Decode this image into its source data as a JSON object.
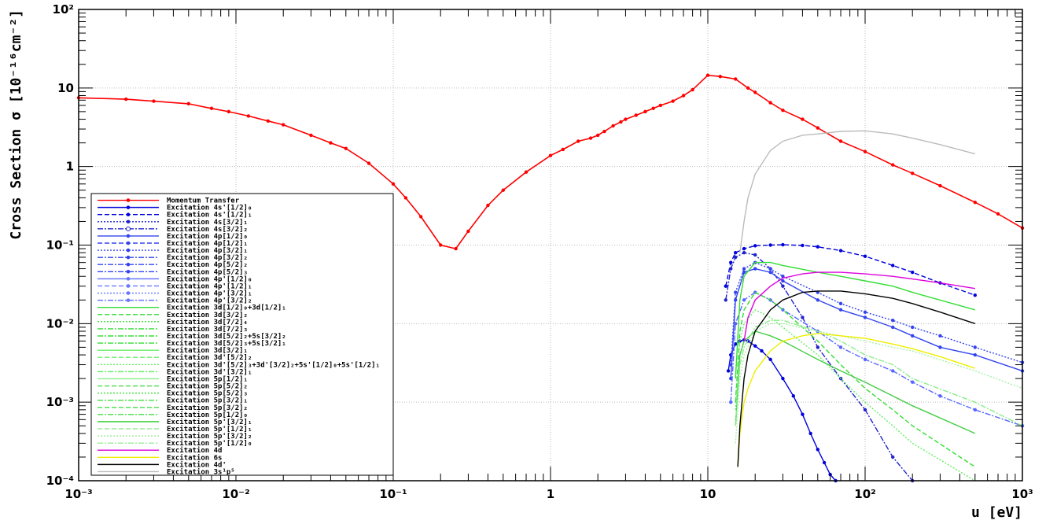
{
  "chart_data": {
    "type": "line",
    "xlabel": "u [eV]",
    "ylabel": "Cross Section σ [10⁻¹⁶cm⁻²]",
    "xscale": "log",
    "yscale": "log",
    "xlim": [
      0.001,
      1000
    ],
    "ylim": [
      0.0001,
      100
    ],
    "grid": true,
    "legend_position": "bottom-left",
    "x_tick_labels": [
      "10⁻³",
      "10⁻²",
      "10⁻¹",
      "1",
      "10",
      "10²",
      "10³"
    ],
    "y_tick_labels": [
      "10⁻⁴",
      "10⁻³",
      "10⁻²",
      "10⁻¹",
      "1",
      "10",
      "10²"
    ],
    "series": [
      {
        "name": "Momentum Transfer",
        "color": "#ff0000",
        "style": "solid",
        "marker": true,
        "x": [
          0.001,
          0.002,
          0.003,
          0.005,
          0.007,
          0.009,
          0.012,
          0.016,
          0.02,
          0.03,
          0.04,
          0.05,
          0.07,
          0.1,
          0.12,
          0.15,
          0.2,
          0.25,
          0.3,
          0.4,
          0.5,
          0.7,
          1,
          1.2,
          1.5,
          1.8,
          2,
          2.2,
          2.5,
          2.8,
          3,
          3.5,
          4,
          4.5,
          5,
          6,
          7,
          8,
          10,
          12,
          15,
          18,
          20,
          25,
          30,
          40,
          50,
          70,
          100,
          150,
          200,
          300,
          500,
          700,
          1000
        ],
        "y": [
          7.5,
          7.2,
          6.8,
          6.3,
          5.5,
          5.0,
          4.4,
          3.8,
          3.4,
          2.5,
          2.0,
          1.7,
          1.1,
          0.6,
          0.4,
          0.23,
          0.1,
          0.09,
          0.15,
          0.32,
          0.5,
          0.85,
          1.38,
          1.65,
          2.1,
          2.3,
          2.5,
          2.8,
          3.3,
          3.7,
          4.0,
          4.5,
          5.0,
          5.5,
          6.0,
          6.8,
          8.0,
          9.5,
          14.5,
          14.0,
          13.0,
          10.0,
          8.8,
          6.5,
          5.2,
          4.0,
          3.1,
          2.1,
          1.55,
          1.05,
          0.82,
          0.57,
          0.35,
          0.25,
          0.165
        ]
      },
      {
        "name": "Excitation 4s'[1/2]₀",
        "color": "#0000dd",
        "style": "solid",
        "marker": true,
        "x": [
          13.5,
          14,
          15,
          16,
          17,
          18,
          20,
          22,
          25,
          30,
          35,
          40,
          45,
          50,
          55,
          60,
          65
        ],
        "y": [
          0.0025,
          0.004,
          0.0055,
          0.006,
          0.0062,
          0.006,
          0.0052,
          0.0045,
          0.0035,
          0.002,
          0.0012,
          0.0007,
          0.0004,
          0.00025,
          0.00017,
          0.00012,
          0.0001
        ]
      },
      {
        "name": "Excitation 4s'[1/2]₁",
        "color": "#0000dd",
        "style": "dashed",
        "marker": true,
        "x": [
          13,
          14,
          15,
          17,
          20,
          25,
          30,
          40,
          50,
          70,
          100,
          150,
          200,
          300,
          500
        ],
        "y": [
          0.03,
          0.06,
          0.08,
          0.09,
          0.098,
          0.1,
          0.101,
          0.099,
          0.095,
          0.085,
          0.072,
          0.055,
          0.045,
          0.033,
          0.023
        ]
      },
      {
        "name": "Excitation 4s[3/2]₁",
        "color": "#2222cc",
        "style": "dashdot",
        "marker": true,
        "x": [
          13,
          14,
          15,
          17,
          20,
          25,
          30,
          40,
          50,
          70,
          100,
          150,
          200
        ],
        "y": [
          0.02,
          0.05,
          0.07,
          0.08,
          0.075,
          0.05,
          0.03,
          0.012,
          0.005,
          0.002,
          0.0008,
          0.0002,
          0.0001
        ]
      },
      {
        "name": "Excitation 4p[1/2]₁",
        "color": "#3344ee",
        "style": "solid",
        "marker": true,
        "x": [
          14,
          15,
          17,
          20,
          25,
          30,
          50,
          70,
          100,
          150,
          200,
          300,
          500,
          1000
        ],
        "y": [
          0.002,
          0.02,
          0.045,
          0.05,
          0.045,
          0.035,
          0.02,
          0.015,
          0.012,
          0.009,
          0.007,
          0.005,
          0.004,
          0.0025
        ]
      },
      {
        "name": "Excitation 4p[3/2]₁",
        "color": "#3344ee",
        "style": "dotted",
        "marker": true,
        "x": [
          14,
          15,
          17,
          20,
          25,
          30,
          50,
          70,
          100,
          150,
          200,
          300,
          500,
          1000
        ],
        "y": [
          0.003,
          0.025,
          0.05,
          0.06,
          0.05,
          0.04,
          0.025,
          0.018,
          0.014,
          0.011,
          0.009,
          0.007,
          0.005,
          0.0032
        ]
      },
      {
        "name": "Excitation 4p[5/2]₂",
        "color": "#5566ff",
        "style": "dashdot",
        "marker": true,
        "x": [
          14,
          15,
          17,
          20,
          25,
          30,
          50,
          70,
          100,
          150,
          200,
          300,
          500,
          1000
        ],
        "y": [
          0.001,
          0.01,
          0.02,
          0.025,
          0.02,
          0.015,
          0.008,
          0.005,
          0.0035,
          0.0025,
          0.0018,
          0.0012,
          0.0008,
          0.0005
        ]
      },
      {
        "name": "Excitation 3d[1/2]₁+3d[1/2]₁",
        "color": "#33dd33",
        "style": "solid",
        "marker": false,
        "x": [
          15,
          16,
          17,
          20,
          25,
          30,
          50,
          70,
          100,
          150,
          200,
          500
        ],
        "y": [
          0.002,
          0.02,
          0.04,
          0.06,
          0.06,
          0.055,
          0.045,
          0.04,
          0.035,
          0.03,
          0.025,
          0.015
        ]
      },
      {
        "name": "Excitation 3d[3/2]₂",
        "color": "#33dd33",
        "style": "dashed",
        "marker": false,
        "x": [
          15,
          16,
          17,
          20,
          25,
          30,
          50,
          70,
          100,
          150,
          200,
          500
        ],
        "y": [
          0.001,
          0.008,
          0.015,
          0.025,
          0.02,
          0.015,
          0.006,
          0.003,
          0.0015,
          0.0008,
          0.0005,
          0.00015
        ]
      },
      {
        "name": "Excitation 3d[7/2]₄",
        "color": "#66ee66",
        "style": "dotted",
        "marker": false,
        "x": [
          15,
          16,
          17,
          20,
          25,
          30,
          50,
          70,
          100,
          150,
          200,
          500
        ],
        "y": [
          0.0008,
          0.006,
          0.01,
          0.015,
          0.012,
          0.009,
          0.004,
          0.002,
          0.001,
          0.0005,
          0.0003,
          0.0001
        ]
      },
      {
        "name": "Excitation 3d'[5/2]₂",
        "color": "#44cc44",
        "style": "solid",
        "marker": false,
        "x": [
          15,
          16,
          17,
          20,
          25,
          30,
          50,
          70,
          100,
          150,
          200,
          500
        ],
        "y": [
          0.0005,
          0.004,
          0.006,
          0.008,
          0.007,
          0.006,
          0.0035,
          0.0025,
          0.0018,
          0.0012,
          0.0009,
          0.0004
        ]
      },
      {
        "name": "Excitation 5p[1/2]₁",
        "color": "#88ee88",
        "style": "dashdot",
        "marker": false,
        "x": [
          15,
          16,
          17,
          20,
          25,
          30,
          50,
          70,
          100,
          150,
          200,
          500,
          1000
        ],
        "y": [
          0.0005,
          0.003,
          0.005,
          0.009,
          0.011,
          0.011,
          0.008,
          0.006,
          0.004,
          0.003,
          0.002,
          0.001,
          0.0005
        ]
      },
      {
        "name": "Excitation 5p'[1/2]₀",
        "color": "#aaeeaa",
        "style": "dotted",
        "marker": false,
        "x": [
          15,
          16,
          17,
          20,
          25,
          30,
          50,
          70,
          100,
          150,
          200,
          500,
          1000
        ],
        "y": [
          0.0003,
          0.002,
          0.004,
          0.008,
          0.01,
          0.01,
          0.008,
          0.007,
          0.006,
          0.005,
          0.0045,
          0.0025,
          0.0015
        ]
      },
      {
        "name": "Excitation 4d",
        "color": "#dd00dd",
        "style": "solid",
        "marker": false,
        "x": [
          17,
          18,
          20,
          25,
          30,
          40,
          50,
          70,
          100,
          150,
          200,
          300,
          500
        ],
        "y": [
          0.006,
          0.012,
          0.02,
          0.03,
          0.038,
          0.043,
          0.045,
          0.045,
          0.043,
          0.04,
          0.037,
          0.033,
          0.028
        ]
      },
      {
        "name": "Excitation 6s",
        "color": "#eeee00",
        "style": "solid",
        "marker": false,
        "x": [
          15.5,
          16,
          17,
          18,
          20,
          25,
          30,
          40,
          50,
          70,
          100,
          150,
          200,
          300,
          500
        ],
        "y": [
          0.00015,
          0.0004,
          0.001,
          0.0015,
          0.0025,
          0.0045,
          0.006,
          0.007,
          0.0075,
          0.007,
          0.0065,
          0.0055,
          0.0048,
          0.0038,
          0.0027
        ]
      },
      {
        "name": "Excitation 4d'",
        "color": "#000000",
        "style": "solid",
        "marker": false,
        "x": [
          15.5,
          16,
          17,
          18,
          20,
          25,
          30,
          40,
          50,
          70,
          100,
          150,
          200,
          300,
          500
        ],
        "y": [
          0.00015,
          0.0005,
          0.002,
          0.004,
          0.008,
          0.015,
          0.02,
          0.025,
          0.026,
          0.026,
          0.024,
          0.021,
          0.018,
          0.014,
          0.01
        ]
      },
      {
        "name": "Excitation 3s¹p⁵",
        "color": "#bbbbbb",
        "style": "solid",
        "marker": false,
        "x": [
          16,
          17,
          18,
          20,
          25,
          30,
          40,
          50,
          70,
          100,
          150,
          200,
          300,
          500
        ],
        "y": [
          0.08,
          0.2,
          0.4,
          0.8,
          1.6,
          2.1,
          2.5,
          2.6,
          2.8,
          2.85,
          2.6,
          2.3,
          1.9,
          1.45
        ]
      }
    ],
    "legend_entries": [
      {
        "label": "Momentum Transfer",
        "color": "#ff0000",
        "style": "solid",
        "marker": "circle"
      },
      {
        "label": "Excitation 4s'[1/2]₀",
        "color": "#0000dd",
        "style": "solid",
        "marker": "square"
      },
      {
        "label": "Excitation 4s'[1/2]₁",
        "color": "#0000dd",
        "style": "dashed",
        "marker": "triangle"
      },
      {
        "label": "Excitation 4s[3/2]₁",
        "color": "#2222cc",
        "style": "dotted",
        "marker": "triangle-down"
      },
      {
        "label": "Excitation 4s[3/2]₂",
        "color": "#2222cc",
        "style": "dashdot",
        "marker": "open-circle"
      },
      {
        "label": "Excitation 4p[1/2]₀",
        "color": "#3344ee",
        "style": "solid",
        "marker": "circle"
      },
      {
        "label": "Excitation 4p[1/2]₁",
        "color": "#3344ee",
        "style": "dashed",
        "marker": "square"
      },
      {
        "label": "Excitation 4p[3/2]₁",
        "color": "#3344ee",
        "style": "dotted",
        "marker": "triangle"
      },
      {
        "label": "Excitation 4p[3/2]₂",
        "color": "#3344ee",
        "style": "dashdot",
        "marker": "star"
      },
      {
        "label": "Excitation 4p[5/2]₂",
        "color": "#3344ee",
        "style": "dashdot",
        "marker": "square"
      },
      {
        "label": "Excitation 4p[5/2]₃",
        "color": "#3344ee",
        "style": "dashdot",
        "marker": "triangle"
      },
      {
        "label": "Excitation 4p'[1/2]₀",
        "color": "#6677ff",
        "style": "solid",
        "marker": "square"
      },
      {
        "label": "Excitation 4p'[1/2]₁",
        "color": "#6677ff",
        "style": "dashed",
        "marker": "triangle"
      },
      {
        "label": "Excitation 4p'[3/2]₁",
        "color": "#6677ff",
        "style": "dotted",
        "marker": "triangle"
      },
      {
        "label": "Excitation 4p'[3/2]₂",
        "color": "#6677ff",
        "style": "dashdot",
        "marker": "triangle-down"
      },
      {
        "label": "Excitation 3d[1/2]₀+3d[1/2]₁",
        "color": "#33dd33",
        "style": "solid",
        "marker": ""
      },
      {
        "label": "Excitation 3d[3/2]₂",
        "color": "#33dd33",
        "style": "dashed",
        "marker": ""
      },
      {
        "label": "Excitation 3d[7/2]₄",
        "color": "#33dd33",
        "style": "dotted",
        "marker": ""
      },
      {
        "label": "Excitation 3d[7/2]₃",
        "color": "#33dd33",
        "style": "dashdot",
        "marker": ""
      },
      {
        "label": "Excitation 3d[5/2]₂+5s[3/2]₂",
        "color": "#33dd33",
        "style": "dashdot",
        "marker": ""
      },
      {
        "label": "Excitation 3d[5/2]₃+5s[3/2]₁",
        "color": "#33dd33",
        "style": "dashdot",
        "marker": ""
      },
      {
        "label": "Excitation 3d[3/2]₁",
        "color": "#66ee66",
        "style": "solid",
        "marker": ""
      },
      {
        "label": "Excitation 3d'[5/2]₂",
        "color": "#66ee66",
        "style": "dashed",
        "marker": ""
      },
      {
        "label": "Excitation 3d'[5/2]₃+3d'[3/2]₂+5s'[1/2]₀+5s'[1/2]₁",
        "color": "#66ee66",
        "style": "dotted",
        "marker": ""
      },
      {
        "label": "Excitation 3d'[3/2]₁",
        "color": "#66ee66",
        "style": "dashdot",
        "marker": ""
      },
      {
        "label": "Excitation 5p[1/2]₁",
        "color": "#88ee88",
        "style": "solid",
        "marker": ""
      },
      {
        "label": "Excitation 5p[5/2]₂",
        "color": "#44dd44",
        "style": "dashed",
        "marker": ""
      },
      {
        "label": "Excitation 5p[5/2]₃",
        "color": "#44dd44",
        "style": "dotted",
        "marker": ""
      },
      {
        "label": "Excitation 5p[3/2]₁",
        "color": "#44dd44",
        "style": "dashdot",
        "marker": ""
      },
      {
        "label": "Excitation 5p[3/2]₂",
        "color": "#44dd44",
        "style": "dashed",
        "marker": ""
      },
      {
        "label": "Excitation 5p[1/2]₀",
        "color": "#44dd44",
        "style": "dashdot",
        "marker": ""
      },
      {
        "label": "Excitation 5p'[3/2]₁",
        "color": "#22cc22",
        "style": "solid",
        "marker": ""
      },
      {
        "label": "Excitation 5p'[1/2]₁",
        "color": "#99ee99",
        "style": "dashed",
        "marker": ""
      },
      {
        "label": "Excitation 5p'[3/2]₂",
        "color": "#99ee99",
        "style": "dotted",
        "marker": ""
      },
      {
        "label": "Excitation 5p'[1/2]₀",
        "color": "#99ee99",
        "style": "dashdot",
        "marker": ""
      },
      {
        "label": "Excitation 4d",
        "color": "#dd00dd",
        "style": "solid",
        "marker": ""
      },
      {
        "label": "Excitation 6s",
        "color": "#eeee00",
        "style": "solid",
        "marker": ""
      },
      {
        "label": "Excitation 4d'",
        "color": "#000000",
        "style": "solid",
        "marker": ""
      },
      {
        "label": "Excitation 3s¹p⁵",
        "color": "#bbbbbb",
        "style": "solid",
        "marker": ""
      }
    ]
  }
}
